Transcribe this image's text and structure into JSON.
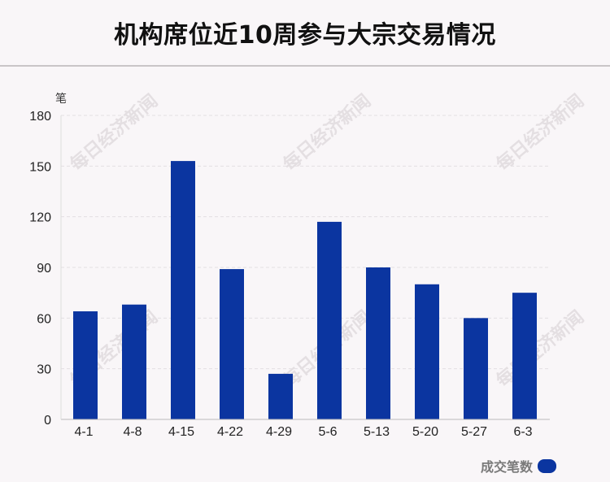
{
  "chart_data": {
    "type": "bar",
    "title": "机构席位近10周参与大宗交易情况",
    "ylabel": "笔",
    "xlabel": "",
    "categories": [
      "4-1",
      "4-8",
      "4-15",
      "4-22",
      "4-29",
      "5-6",
      "5-13",
      "5-20",
      "5-27",
      "6-3"
    ],
    "series": [
      {
        "name": "成交笔数",
        "values": [
          64,
          68,
          153,
          89,
          27,
          117,
          90,
          80,
          60,
          75
        ]
      }
    ],
    "ylim": [
      0,
      180
    ],
    "yticks": [
      0,
      30,
      60,
      90,
      120,
      150,
      180
    ],
    "grid": true,
    "legend": "bottom-right",
    "color": "#0b35a0"
  },
  "watermark_text": "每日经济新闻"
}
